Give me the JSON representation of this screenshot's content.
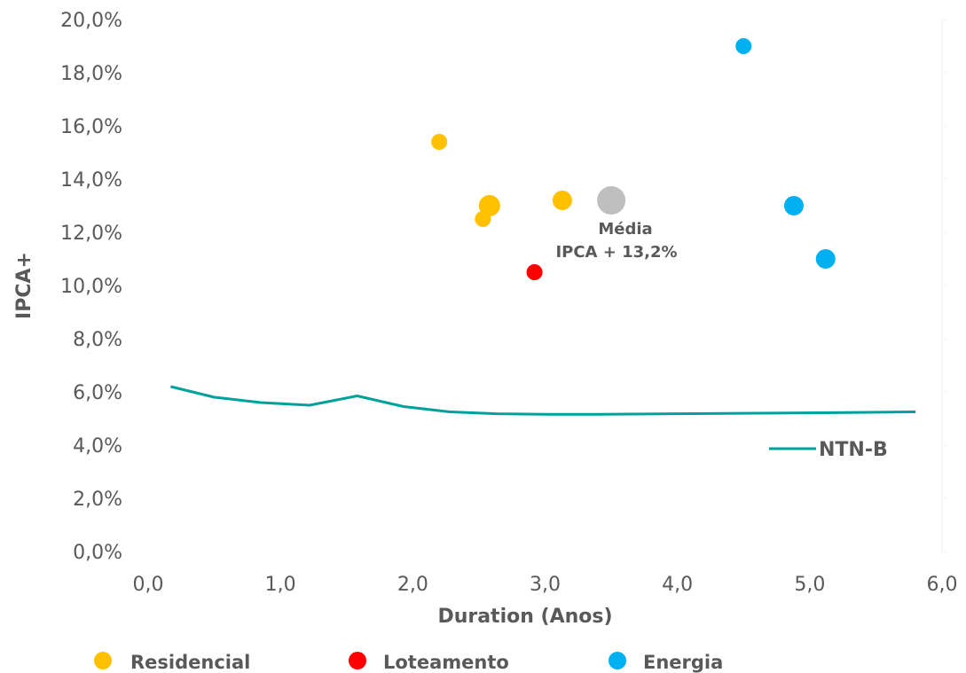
{
  "chart_data": {
    "type": "scatter",
    "ylabel": "IPCA+",
    "xlabel": "Duration (Anos)",
    "xlim": [
      0,
      6
    ],
    "ylim": [
      0,
      20
    ],
    "x_ticks": [
      0,
      1,
      2,
      3,
      4,
      5,
      6
    ],
    "x_tick_labels": [
      "0,0",
      "1,0",
      "2,0",
      "3,0",
      "4,0",
      "5,0",
      "6,0"
    ],
    "y_ticks": [
      0,
      2,
      4,
      6,
      8,
      10,
      12,
      14,
      16,
      18,
      20
    ],
    "y_tick_labels": [
      "0,0%",
      "2,0%",
      "4,0%",
      "6,0%",
      "8,0%",
      "10,0%",
      "12,0%",
      "14,0%",
      "16,0%",
      "18,0%",
      "20,0%"
    ],
    "grid": false,
    "series": [
      {
        "name": "Residencial",
        "color": "#FFC000",
        "points": [
          {
            "x": 2.2,
            "y": 15.4,
            "size": "small"
          },
          {
            "x": 2.53,
            "y": 12.5,
            "size": "small"
          },
          {
            "x": 2.58,
            "y": 13.0,
            "size": "large"
          },
          {
            "x": 3.13,
            "y": 13.2,
            "size": "medium"
          }
        ]
      },
      {
        "name": "Loteamento",
        "color": "#FF0000",
        "points": [
          {
            "x": 2.92,
            "y": 10.5,
            "size": "small"
          }
        ]
      },
      {
        "name": "Energia",
        "color": "#00B0F0",
        "points": [
          {
            "x": 4.5,
            "y": 19.0,
            "size": "small"
          },
          {
            "x": 4.88,
            "y": 13.0,
            "size": "medium"
          },
          {
            "x": 5.12,
            "y": 11.0,
            "size": "medium"
          }
        ]
      }
    ],
    "average_point": {
      "x": 3.5,
      "y": 13.2,
      "color": "#BFBFBF",
      "label_line1": "Média",
      "label_line2": "IPCA + 13,2%"
    },
    "line_series": {
      "name": "NTN-B",
      "color": "#00A19A",
      "x": [
        0.17,
        0.5,
        0.85,
        1.22,
        1.58,
        1.93,
        2.28,
        2.63,
        3.0,
        3.4,
        4.0,
        4.6,
        5.2,
        5.8
      ],
      "y": [
        6.2,
        5.8,
        5.6,
        5.5,
        5.85,
        5.45,
        5.25,
        5.18,
        5.16,
        5.16,
        5.18,
        5.2,
        5.22,
        5.25
      ]
    },
    "legend": {
      "placement": "bottom",
      "items": [
        "Residencial",
        "Loteamento",
        "Energia"
      ]
    }
  }
}
